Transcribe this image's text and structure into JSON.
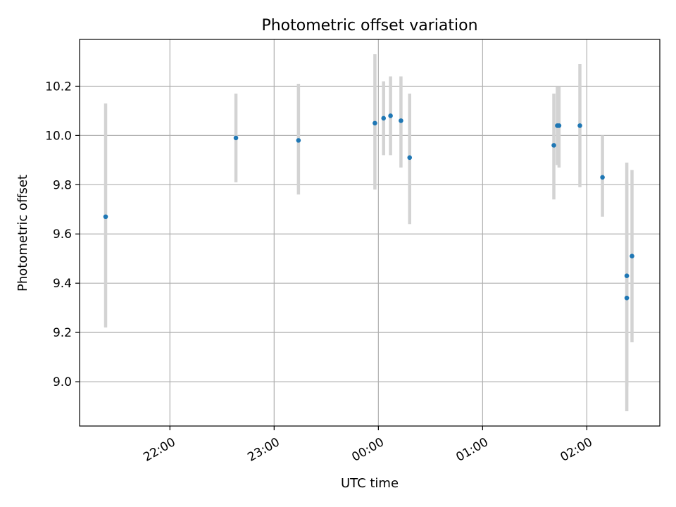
{
  "chart_data": {
    "type": "scatter",
    "title": "Photometric offset variation",
    "xlabel": "UTC time",
    "ylabel": "Photometric offset",
    "x_is_time": true,
    "xlim": [
      "21:08",
      "02:42"
    ],
    "ylim": [
      8.82,
      10.39
    ],
    "x_ticks": [
      "22:00",
      "23:00",
      "00:00",
      "01:00",
      "02:00"
    ],
    "y_ticks": [
      "9.0",
      "9.2",
      "9.4",
      "9.6",
      "9.8",
      "10.0",
      "10.2"
    ],
    "grid": true,
    "colors": {
      "point": "#1f77b4",
      "errorbar": "#d3d3d3",
      "grid": "#b0b0b0",
      "axes": "#000000"
    },
    "series": [
      {
        "points": [
          {
            "x": "21:23",
            "y": 9.67,
            "ylow": 9.22,
            "yhigh": 10.13
          },
          {
            "x": "22:38",
            "y": 9.99,
            "ylow": 9.81,
            "yhigh": 10.17
          },
          {
            "x": "23:14",
            "y": 9.98,
            "ylow": 9.76,
            "yhigh": 10.21
          },
          {
            "x": "23:58",
            "y": 10.05,
            "ylow": 9.78,
            "yhigh": 10.33
          },
          {
            "x": "00:03",
            "y": 10.07,
            "ylow": 9.92,
            "yhigh": 10.22
          },
          {
            "x": "00:07",
            "y": 10.08,
            "ylow": 9.92,
            "yhigh": 10.24
          },
          {
            "x": "00:13",
            "y": 10.06,
            "ylow": 9.87,
            "yhigh": 10.24
          },
          {
            "x": "00:18",
            "y": 9.91,
            "ylow": 9.64,
            "yhigh": 10.17
          },
          {
            "x": "01:41",
            "y": 9.96,
            "ylow": 9.74,
            "yhigh": 10.17
          },
          {
            "x": "01:43",
            "y": 10.04,
            "ylow": 9.88,
            "yhigh": 10.2
          },
          {
            "x": "01:44",
            "y": 10.04,
            "ylow": 9.87,
            "yhigh": 10.2
          },
          {
            "x": "01:56",
            "y": 10.04,
            "ylow": 9.79,
            "yhigh": 10.29
          },
          {
            "x": "02:09",
            "y": 9.83,
            "ylow": 9.67,
            "yhigh": 10.0
          },
          {
            "x": "02:23",
            "y": 9.43,
            "ylow": 8.98,
            "yhigh": 9.89
          },
          {
            "x": "02:23",
            "y": 9.34,
            "ylow": 8.88,
            "yhigh": 9.81
          },
          {
            "x": "02:26",
            "y": 9.51,
            "ylow": 9.16,
            "yhigh": 9.86
          }
        ]
      }
    ]
  }
}
